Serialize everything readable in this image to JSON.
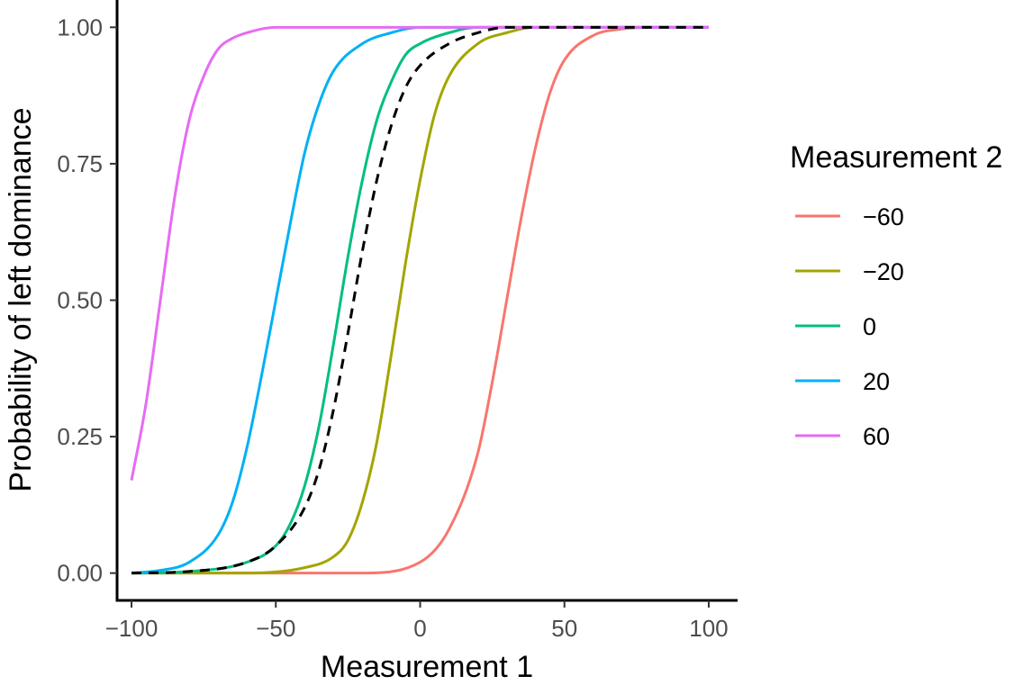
{
  "chart_data": {
    "type": "line",
    "title": "",
    "xlabel": "Measurement 1",
    "ylabel": "Probability of left dominance",
    "xlim": [
      -105,
      110
    ],
    "ylim": [
      -0.05,
      1.05
    ],
    "x_ticks": [
      -100,
      -50,
      0,
      50,
      100
    ],
    "x_tick_labels": [
      "−100",
      "−50",
      "0",
      "50",
      "100"
    ],
    "y_ticks": [
      0,
      0.25,
      0.5,
      0.75,
      1
    ],
    "y_tick_labels": [
      "0.00",
      "0.25",
      "0.50",
      "0.75",
      "1.00"
    ],
    "grid": false,
    "legend": {
      "title": "Measurement 2",
      "placement": "right",
      "entries": [
        {
          "label": "−60",
          "color": "#F8766D"
        },
        {
          "label": "−20",
          "color": "#A3A500"
        },
        {
          "label": "0",
          "color": "#00BF7D"
        },
        {
          "label": "20",
          "color": "#00B0F6"
        },
        {
          "label": "60",
          "color": "#E76BF3"
        }
      ]
    },
    "series": [
      {
        "name": "−60",
        "color": "#F8766D",
        "dashed": false,
        "x": [
          -100,
          -80,
          -60,
          -40,
          -20,
          0,
          10,
          20,
          25,
          30,
          35,
          40,
          45,
          50,
          60,
          70,
          80,
          100
        ],
        "y": [
          0,
          0,
          0,
          0,
          0,
          0.02,
          0.08,
          0.22,
          0.35,
          0.5,
          0.65,
          0.78,
          0.88,
          0.94,
          0.985,
          0.997,
          1,
          1
        ]
      },
      {
        "name": "−20",
        "color": "#A3A500",
        "dashed": false,
        "x": [
          -100,
          -80,
          -60,
          -40,
          -30,
          -25,
          -20,
          -15,
          -10,
          -5,
          0,
          5,
          10,
          20,
          30,
          40,
          60,
          100
        ],
        "y": [
          0,
          0,
          0,
          0.01,
          0.03,
          0.06,
          0.13,
          0.24,
          0.4,
          0.57,
          0.72,
          0.84,
          0.91,
          0.97,
          0.99,
          1,
          1,
          1
        ]
      },
      {
        "name": "0",
        "color": "#00BF7D",
        "dashed": false,
        "x": [
          -100,
          -80,
          -60,
          -50,
          -45,
          -40,
          -35,
          -30,
          -25,
          -20,
          -15,
          -10,
          -5,
          0,
          10,
          20,
          40,
          100
        ],
        "y": [
          0,
          0.003,
          0.02,
          0.05,
          0.09,
          0.16,
          0.27,
          0.42,
          0.58,
          0.72,
          0.83,
          0.9,
          0.95,
          0.97,
          0.99,
          1,
          1,
          1
        ]
      },
      {
        "name": "20",
        "color": "#00B0F6",
        "dashed": false,
        "x": [
          -100,
          -90,
          -80,
          -70,
          -65,
          -60,
          -55,
          -50,
          -45,
          -40,
          -35,
          -30,
          -20,
          -10,
          0,
          20,
          100
        ],
        "y": [
          0,
          0.005,
          0.02,
          0.07,
          0.13,
          0.23,
          0.36,
          0.5,
          0.64,
          0.77,
          0.86,
          0.92,
          0.97,
          0.99,
          1,
          1,
          1
        ]
      },
      {
        "name": "60",
        "color": "#E76BF3",
        "dashed": false,
        "x": [
          -100,
          -95,
          -90,
          -85,
          -80,
          -75,
          -70,
          -65,
          -60,
          -50,
          -40,
          0,
          100
        ],
        "y": [
          0.17,
          0.31,
          0.5,
          0.69,
          0.83,
          0.91,
          0.96,
          0.98,
          0.99,
          1,
          1,
          1,
          1
        ]
      },
      {
        "name": "",
        "color": "#000000",
        "dashed": true,
        "x": [
          -100,
          -80,
          -60,
          -50,
          -40,
          -35,
          -30,
          -25,
          -20,
          -15,
          -10,
          -5,
          0,
          10,
          20,
          30,
          40,
          100
        ],
        "y": [
          0,
          0.003,
          0.02,
          0.05,
          0.12,
          0.19,
          0.3,
          0.44,
          0.59,
          0.72,
          0.82,
          0.89,
          0.93,
          0.97,
          0.99,
          1,
          1,
          1
        ]
      }
    ]
  }
}
